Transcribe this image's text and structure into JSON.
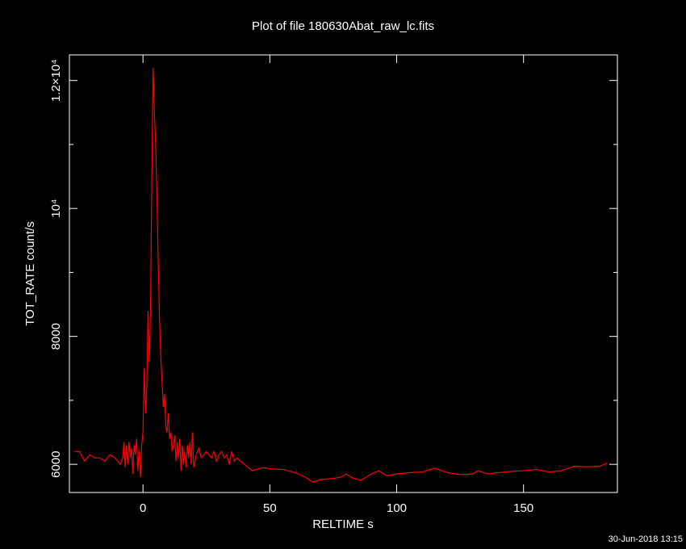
{
  "chart_data": {
    "type": "line",
    "title": "Plot of file 180630Abat_raw_lc.fits",
    "x_label": "RELTIME  s",
    "y_label": "TOT_RATE  count/s",
    "footer": "30-Jun-2018 13:15",
    "xlim": [
      -29,
      187
    ],
    "ylim": [
      5560,
      12400
    ],
    "xticks": [
      0,
      50,
      100,
      150
    ],
    "yticks": [
      6000,
      8000,
      {
        "value": 10000,
        "label": "10⁴"
      },
      {
        "value": 12000,
        "label": "1.2×10⁴"
      }
    ],
    "yminor": [
      7000,
      9000,
      11000
    ],
    "series": [
      {
        "name": "TOT_RATE",
        "color": "#ff0000",
        "x": [
          -27,
          -25,
          -23,
          -21,
          -19,
          -17,
          -15,
          -13,
          -11,
          -9,
          -8,
          -7.5,
          -7,
          -6.5,
          -6,
          -5.5,
          -5,
          -4.5,
          -4,
          -3.5,
          -3,
          -2.5,
          -2,
          -1.5,
          -1,
          -0.5,
          0,
          0.5,
          1,
          1.5,
          2,
          2.5,
          3,
          3.5,
          4,
          4.5,
          5,
          5.5,
          6,
          6.5,
          7,
          7.5,
          8,
          8.5,
          9,
          9.5,
          10,
          10.5,
          11,
          11.5,
          12,
          12.5,
          13,
          13.5,
          14,
          14.5,
          15,
          15.5,
          16,
          16.5,
          17,
          17.5,
          18,
          18.5,
          19,
          19.5,
          20,
          21,
          22,
          23,
          24,
          25,
          26,
          27,
          28,
          29,
          30,
          31,
          32,
          33,
          34,
          35,
          36,
          37,
          40,
          43,
          47,
          50,
          55,
          60,
          64,
          67,
          70,
          75,
          78,
          80,
          83,
          86,
          90,
          93,
          96,
          100,
          105,
          110,
          115,
          120,
          125,
          130,
          132,
          136,
          140,
          145,
          150,
          155,
          160,
          165,
          170,
          175,
          180,
          183
        ],
        "values": [
          6200,
          6200,
          6050,
          6150,
          6100,
          6100,
          6050,
          6150,
          6100,
          6000,
          6100,
          6350,
          5950,
          6300,
          6000,
          6350,
          6100,
          6250,
          5850,
          6300,
          6150,
          6400,
          5900,
          6200,
          5800,
          6300,
          6500,
          7500,
          6800,
          7200,
          8400,
          7600,
          8500,
          10500,
          12200,
          11500,
          11000,
          10200,
          9200,
          8300,
          7700,
          7300,
          6900,
          7100,
          6600,
          6500,
          6800,
          6400,
          6500,
          6200,
          6300,
          6450,
          6050,
          6350,
          6100,
          6400,
          5900,
          6300,
          6000,
          6200,
          5950,
          6300,
          6100,
          6350,
          6000,
          6500,
          5950,
          6150,
          6250,
          6100,
          6150,
          6200,
          6150,
          6100,
          6200,
          6050,
          6150,
          6200,
          6100,
          6150,
          6000,
          6200,
          6050,
          6100,
          6000,
          5900,
          5950,
          5930,
          5920,
          5870,
          5800,
          5720,
          5760,
          5780,
          5800,
          5850,
          5780,
          5750,
          5850,
          5900,
          5820,
          5850,
          5870,
          5880,
          5940,
          5870,
          5840,
          5850,
          5900,
          5850,
          5870,
          5890,
          5900,
          5920,
          5880,
          5900,
          5970,
          5960,
          5970,
          6020
        ]
      }
    ]
  }
}
